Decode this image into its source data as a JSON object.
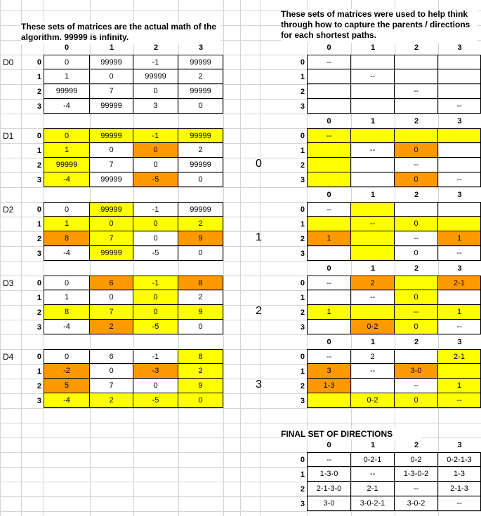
{
  "notes": {
    "left": "These sets of matrices are the actual math of the algorithm. 99999 is infinity.",
    "right": "These sets of matrices were used to help think through how to capture the parents / directions for each shortest paths.",
    "final_title": "FINAL SET OF DIRECTIONS"
  },
  "colors": {
    "highlight": "#ffff00",
    "update": "#ff9900",
    "gridline": "#d4d4d4",
    "border": "#000000"
  },
  "headers": [
    "0",
    "1",
    "2",
    "3"
  ],
  "row_labels": [
    "0",
    "1",
    "2",
    "3"
  ],
  "steps": [
    "0",
    "1",
    "2",
    "3"
  ],
  "dist_blocks": [
    {
      "label": "D0",
      "rows": [
        [
          {
            "v": "0"
          },
          {
            "v": "99999"
          },
          {
            "v": "-1"
          },
          {
            "v": "99999"
          }
        ],
        [
          {
            "v": "1"
          },
          {
            "v": "0"
          },
          {
            "v": "99999"
          },
          {
            "v": "2"
          }
        ],
        [
          {
            "v": "99999"
          },
          {
            "v": "7"
          },
          {
            "v": "0"
          },
          {
            "v": "99999"
          }
        ],
        [
          {
            "v": "-4"
          },
          {
            "v": "99999"
          },
          {
            "v": "3"
          },
          {
            "v": "0"
          }
        ]
      ]
    },
    {
      "label": "D1",
      "rows": [
        [
          {
            "v": "0",
            "c": "y"
          },
          {
            "v": "99999",
            "c": "y"
          },
          {
            "v": "-1",
            "c": "y"
          },
          {
            "v": "99999",
            "c": "y"
          }
        ],
        [
          {
            "v": "1",
            "c": "y"
          },
          {
            "v": "0"
          },
          {
            "v": "0",
            "c": "o"
          },
          {
            "v": "2"
          }
        ],
        [
          {
            "v": "99999",
            "c": "y"
          },
          {
            "v": "7"
          },
          {
            "v": "0"
          },
          {
            "v": "99999"
          }
        ],
        [
          {
            "v": "-4",
            "c": "y"
          },
          {
            "v": "99999"
          },
          {
            "v": "-5",
            "c": "o"
          },
          {
            "v": "0"
          }
        ]
      ]
    },
    {
      "label": "D2",
      "rows": [
        [
          {
            "v": "0"
          },
          {
            "v": "99999",
            "c": "y"
          },
          {
            "v": "-1"
          },
          {
            "v": "99999"
          }
        ],
        [
          {
            "v": "1",
            "c": "y"
          },
          {
            "v": "0",
            "c": "y"
          },
          {
            "v": "0",
            "c": "y"
          },
          {
            "v": "2",
            "c": "y"
          }
        ],
        [
          {
            "v": "8",
            "c": "o"
          },
          {
            "v": "7",
            "c": "y"
          },
          {
            "v": "0"
          },
          {
            "v": "9",
            "c": "o"
          }
        ],
        [
          {
            "v": "-4"
          },
          {
            "v": "99999",
            "c": "y"
          },
          {
            "v": "-5"
          },
          {
            "v": "0"
          }
        ]
      ]
    },
    {
      "label": "D3",
      "rows": [
        [
          {
            "v": "0"
          },
          {
            "v": "6",
            "c": "o"
          },
          {
            "v": "-1",
            "c": "y"
          },
          {
            "v": "8",
            "c": "o"
          }
        ],
        [
          {
            "v": "1"
          },
          {
            "v": "0"
          },
          {
            "v": "0",
            "c": "y"
          },
          {
            "v": "2"
          }
        ],
        [
          {
            "v": "8",
            "c": "y"
          },
          {
            "v": "7",
            "c": "y"
          },
          {
            "v": "0",
            "c": "y"
          },
          {
            "v": "9",
            "c": "y"
          }
        ],
        [
          {
            "v": "-4"
          },
          {
            "v": "2",
            "c": "o"
          },
          {
            "v": "-5",
            "c": "y"
          },
          {
            "v": "0"
          }
        ]
      ]
    },
    {
      "label": "D4",
      "rows": [
        [
          {
            "v": "0"
          },
          {
            "v": "6"
          },
          {
            "v": "-1"
          },
          {
            "v": "8",
            "c": "y"
          }
        ],
        [
          {
            "v": "-2",
            "c": "o"
          },
          {
            "v": "0"
          },
          {
            "v": "-3",
            "c": "o"
          },
          {
            "v": "2",
            "c": "y"
          }
        ],
        [
          {
            "v": "5",
            "c": "o"
          },
          {
            "v": "7"
          },
          {
            "v": "0"
          },
          {
            "v": "9",
            "c": "y"
          }
        ],
        [
          {
            "v": "-4",
            "c": "y"
          },
          {
            "v": "2",
            "c": "y"
          },
          {
            "v": "-5",
            "c": "y"
          },
          {
            "v": "0",
            "c": "y"
          }
        ]
      ]
    }
  ],
  "dir_blocks": [
    {
      "rows": [
        [
          {
            "v": "--"
          },
          {
            "v": ""
          },
          {
            "v": ""
          },
          {
            "v": ""
          }
        ],
        [
          {
            "v": ""
          },
          {
            "v": "--"
          },
          {
            "v": ""
          },
          {
            "v": ""
          }
        ],
        [
          {
            "v": ""
          },
          {
            "v": ""
          },
          {
            "v": "--"
          },
          {
            "v": ""
          }
        ],
        [
          {
            "v": ""
          },
          {
            "v": ""
          },
          {
            "v": ""
          },
          {
            "v": "--"
          }
        ]
      ]
    },
    {
      "rows": [
        [
          {
            "v": "--",
            "c": "y"
          },
          {
            "v": "",
            "c": "y"
          },
          {
            "v": "",
            "c": "y"
          },
          {
            "v": "",
            "c": "y"
          }
        ],
        [
          {
            "v": "",
            "c": "y"
          },
          {
            "v": "--"
          },
          {
            "v": "0",
            "c": "o"
          },
          {
            "v": ""
          }
        ],
        [
          {
            "v": "",
            "c": "y"
          },
          {
            "v": ""
          },
          {
            "v": "--"
          },
          {
            "v": ""
          }
        ],
        [
          {
            "v": "",
            "c": "y"
          },
          {
            "v": ""
          },
          {
            "v": "0",
            "c": "o"
          },
          {
            "v": "--"
          }
        ]
      ]
    },
    {
      "rows": [
        [
          {
            "v": "--"
          },
          {
            "v": "",
            "c": "y"
          },
          {
            "v": ""
          },
          {
            "v": ""
          }
        ],
        [
          {
            "v": "",
            "c": "y"
          },
          {
            "v": "--",
            "c": "y"
          },
          {
            "v": "0",
            "c": "y"
          },
          {
            "v": "",
            "c": "y"
          }
        ],
        [
          {
            "v": "1",
            "c": "o"
          },
          {
            "v": "",
            "c": "y"
          },
          {
            "v": "--"
          },
          {
            "v": "1",
            "c": "o"
          }
        ],
        [
          {
            "v": ""
          },
          {
            "v": "",
            "c": "y"
          },
          {
            "v": "0"
          },
          {
            "v": "--"
          }
        ]
      ]
    },
    {
      "rows": [
        [
          {
            "v": "--"
          },
          {
            "v": "2",
            "c": "o"
          },
          {
            "v": "",
            "c": "y"
          },
          {
            "v": "2-1",
            "c": "o"
          }
        ],
        [
          {
            "v": ""
          },
          {
            "v": "--"
          },
          {
            "v": "0",
            "c": "y"
          },
          {
            "v": ""
          }
        ],
        [
          {
            "v": "1",
            "c": "y"
          },
          {
            "v": "",
            "c": "y"
          },
          {
            "v": "--",
            "c": "y"
          },
          {
            "v": "1",
            "c": "y"
          }
        ],
        [
          {
            "v": ""
          },
          {
            "v": "0-2",
            "c": "o"
          },
          {
            "v": "0",
            "c": "y"
          },
          {
            "v": "--"
          }
        ]
      ]
    },
    {
      "rows": [
        [
          {
            "v": "--"
          },
          {
            "v": "2"
          },
          {
            "v": ""
          },
          {
            "v": "2-1",
            "c": "y"
          }
        ],
        [
          {
            "v": "3",
            "c": "o"
          },
          {
            "v": "--"
          },
          {
            "v": "3-0",
            "c": "o"
          },
          {
            "v": "",
            "c": "y"
          }
        ],
        [
          {
            "v": "1-3",
            "c": "o"
          },
          {
            "v": ""
          },
          {
            "v": "--"
          },
          {
            "v": "1",
            "c": "y"
          }
        ],
        [
          {
            "v": "",
            "c": "y"
          },
          {
            "v": "0-2",
            "c": "y"
          },
          {
            "v": "0",
            "c": "y"
          },
          {
            "v": "--",
            "c": "y"
          }
        ]
      ]
    },
    {
      "rows": [
        [
          {
            "v": "--"
          },
          {
            "v": "0-2-1"
          },
          {
            "v": "0-2"
          },
          {
            "v": "0-2-1-3"
          }
        ],
        [
          {
            "v": "1-3-0"
          },
          {
            "v": "--"
          },
          {
            "v": "1-3-0-2"
          },
          {
            "v": "1-3"
          }
        ],
        [
          {
            "v": "2-1-3-0"
          },
          {
            "v": "2-1"
          },
          {
            "v": "--"
          },
          {
            "v": "2-1-3"
          }
        ],
        [
          {
            "v": "3-0"
          },
          {
            "v": "3-0-2-1"
          },
          {
            "v": "3-0-2"
          },
          {
            "v": "--"
          }
        ]
      ]
    }
  ]
}
